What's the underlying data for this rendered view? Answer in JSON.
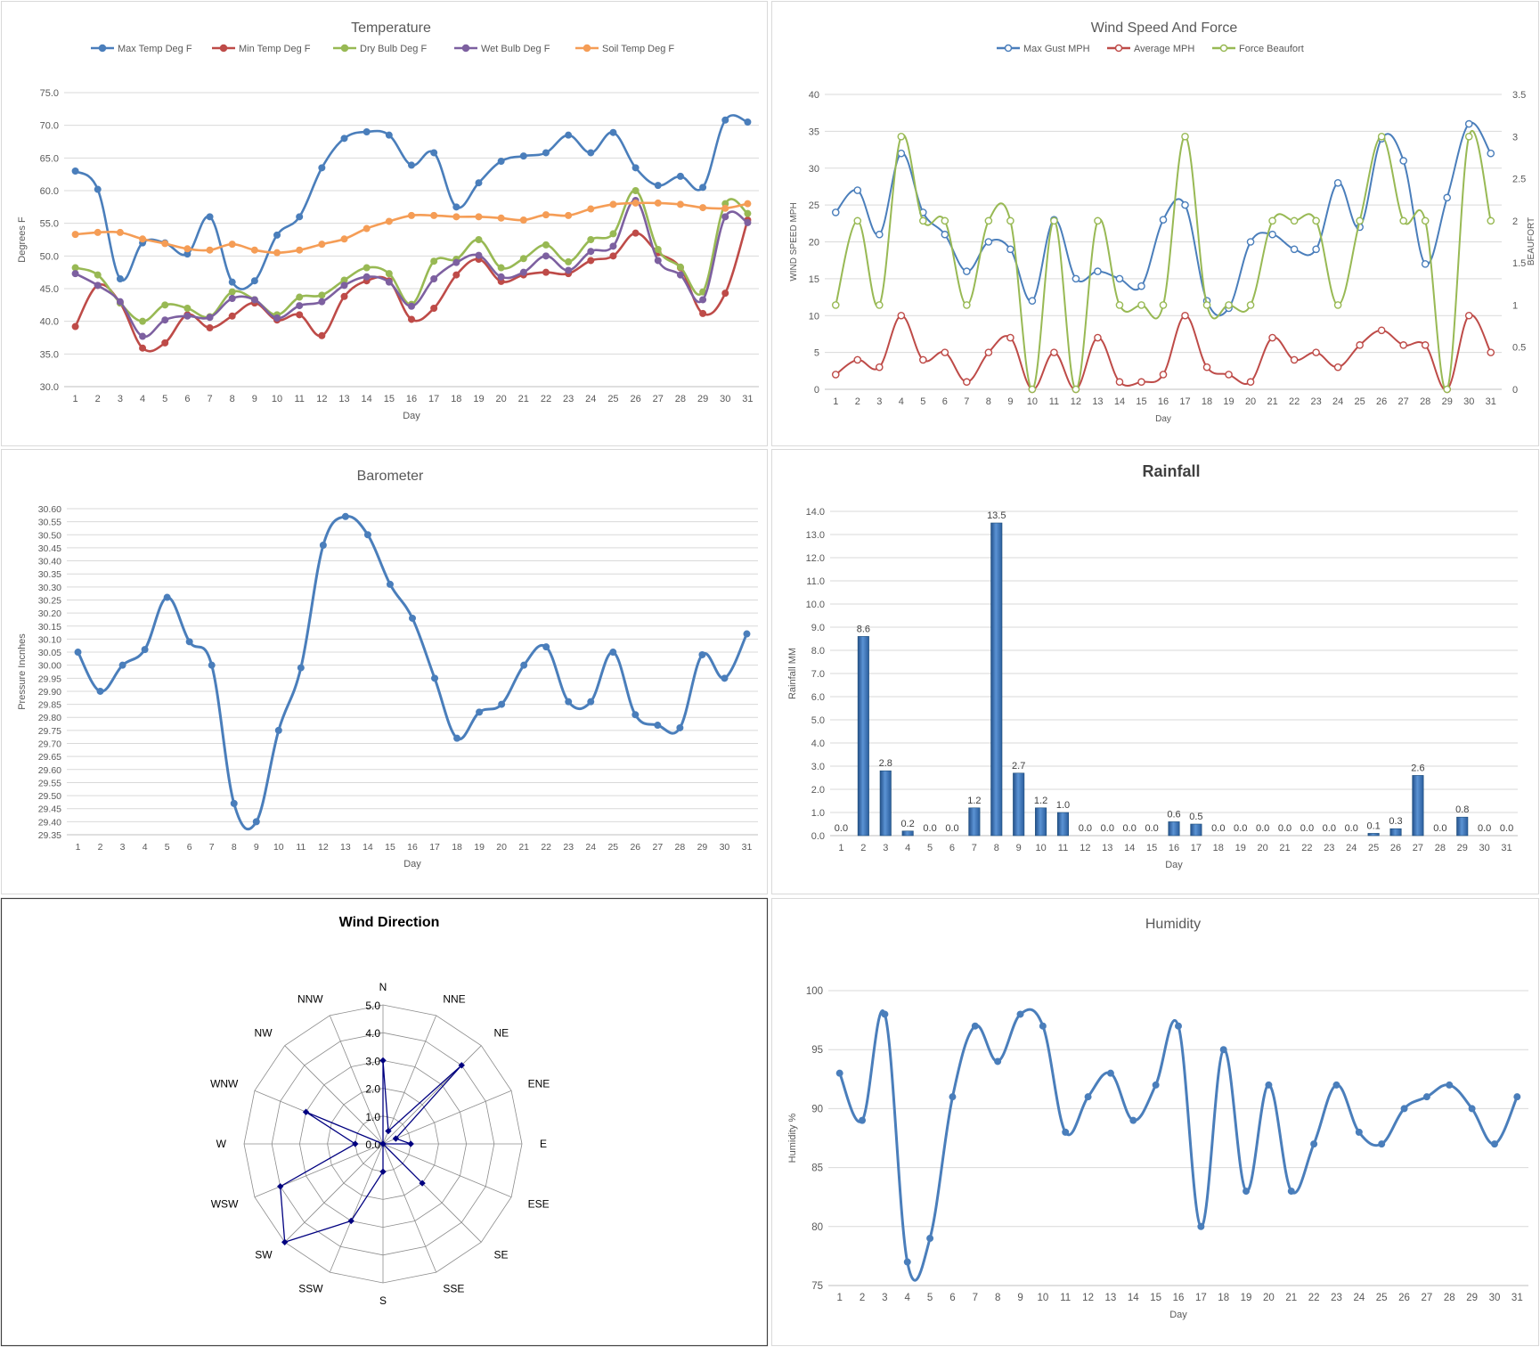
{
  "chart_data": [
    {
      "id": "temperature",
      "type": "line",
      "title": "Temperature",
      "xlabel": "Day",
      "ylabel": "Degrees F",
      "ylim": [
        30,
        75
      ],
      "yticks": [
        "30.0",
        "35.0",
        "40.0",
        "45.0",
        "50.0",
        "55.0",
        "60.0",
        "65.0",
        "70.0",
        "75.0"
      ],
      "categories": [
        "1",
        "2",
        "3",
        "4",
        "5",
        "6",
        "7",
        "8",
        "9",
        "10",
        "11",
        "12",
        "13",
        "14",
        "15",
        "16",
        "17",
        "18",
        "19",
        "20",
        "21",
        "22",
        "23",
        "24",
        "25",
        "26",
        "27",
        "28",
        "29",
        "30",
        "31"
      ],
      "legend_position": "top",
      "grid": true,
      "series": [
        {
          "name": "Max Temp Deg F",
          "color": "#4a7ebb",
          "values": [
            63,
            60.2,
            46.5,
            52,
            52,
            50.3,
            56,
            46,
            46.2,
            53.2,
            56,
            63.5,
            68,
            69,
            68.5,
            63.9,
            65.8,
            57.5,
            61.2,
            64.5,
            65.3,
            65.8,
            68.5,
            65.8,
            68.9,
            63.5,
            60.8,
            62.2,
            60.5,
            70.8,
            70.5
          ]
        },
        {
          "name": "Min Temp Deg F",
          "color": "#be4b48",
          "values": [
            39.2,
            45.5,
            42.8,
            35.9,
            36.7,
            41,
            39,
            40.8,
            42.8,
            40.2,
            41,
            37.8,
            43.8,
            46.2,
            46.2,
            40.3,
            42,
            47.1,
            49.5,
            46.1,
            47.1,
            47.5,
            47.3,
            49.3,
            50,
            53.5,
            50.5,
            48.2,
            41.2,
            44.3,
            55.5
          ]
        },
        {
          "name": "Dry Bulb Deg F",
          "color": "#98b954",
          "values": [
            48.2,
            47.1,
            42.8,
            40,
            42.5,
            42,
            40.7,
            44.5,
            43.3,
            41,
            43.7,
            44,
            46.3,
            48.2,
            47.3,
            42.6,
            49.2,
            49.5,
            52.5,
            48.2,
            49.6,
            51.7,
            49.1,
            52.5,
            53.4,
            60,
            51,
            48.3,
            44.5,
            58,
            56.5
          ]
        },
        {
          "name": "Wet Bulb Deg F",
          "color": "#7d60a0",
          "values": [
            47.3,
            45.5,
            43,
            37.7,
            40.2,
            40.8,
            40.6,
            43.5,
            43.3,
            40.5,
            42.4,
            43,
            45.5,
            46.8,
            46,
            42.3,
            46.5,
            49,
            50.1,
            46.8,
            47.5,
            50,
            47.8,
            50.7,
            51.5,
            58.5,
            49.3,
            47.1,
            43.3,
            56,
            55.1
          ]
        },
        {
          "name": "Soil Temp Deg F",
          "color": "#f59d56",
          "values": [
            53.3,
            53.6,
            53.6,
            52.6,
            51.9,
            51.1,
            50.9,
            51.8,
            50.9,
            50.5,
            50.9,
            51.8,
            52.6,
            54.2,
            55.3,
            56.2,
            56.2,
            56,
            56,
            55.8,
            55.5,
            56.3,
            56.2,
            57.2,
            57.9,
            58.1,
            58.1,
            57.9,
            57.4,
            57.3,
            58
          ]
        }
      ]
    },
    {
      "id": "wind",
      "type": "line",
      "title": "Wind Speed And Force",
      "xlabel": "Day",
      "ylabel": "WIND SPEED MPH",
      "ylabel2": "BEAUFORT",
      "ylim": [
        0,
        40
      ],
      "y2lim": [
        0,
        3.5
      ],
      "yticks": [
        "0",
        "5",
        "10",
        "15",
        "20",
        "25",
        "30",
        "35",
        "40"
      ],
      "y2ticks": [
        "0",
        "0.5",
        "1",
        "1.5",
        "2",
        "2.5",
        "3",
        "3.5"
      ],
      "categories": [
        "1",
        "2",
        "3",
        "4",
        "5",
        "6",
        "7",
        "8",
        "9",
        "10",
        "11",
        "12",
        "13",
        "14",
        "15",
        "16",
        "17",
        "18",
        "19",
        "20",
        "21",
        "22",
        "23",
        "24",
        "25",
        "26",
        "27",
        "28",
        "29",
        "30",
        "31"
      ],
      "legend_position": "top",
      "grid": true,
      "series": [
        {
          "name": "Max Gust MPH",
          "color": "#4a7ebb",
          "axis": "left",
          "values": [
            24,
            27,
            21,
            32,
            24,
            21,
            16,
            20,
            19,
            12,
            23,
            15,
            16,
            15,
            14,
            23,
            25,
            12,
            11,
            20,
            21,
            19,
            19,
            28,
            22,
            34,
            31,
            17,
            26,
            36,
            32
          ]
        },
        {
          "name": "Average MPH",
          "color": "#be4b48",
          "axis": "left",
          "values": [
            2,
            4,
            3,
            10,
            4,
            5,
            1,
            5,
            7,
            0,
            5,
            0,
            7,
            1,
            1,
            2,
            10,
            3,
            2,
            1,
            7,
            4,
            5,
            3,
            6,
            8,
            6,
            6,
            0,
            10,
            5
          ]
        },
        {
          "name": "Force Beaufort",
          "color": "#98b954",
          "axis": "right",
          "values": [
            1,
            2,
            1,
            3,
            2,
            2,
            1,
            2,
            2,
            0,
            2,
            0,
            2,
            1,
            1,
            1,
            3,
            1,
            1,
            1,
            2,
            2,
            2,
            1,
            2,
            3,
            2,
            2,
            0,
            3,
            2
          ]
        }
      ]
    },
    {
      "id": "barometer",
      "type": "line",
      "title": "Barometer",
      "xlabel": "Day",
      "ylabel": "Pressure Incnhes",
      "ylim": [
        29.35,
        30.6
      ],
      "yticks": [
        "29.35",
        "29.40",
        "29.45",
        "29.50",
        "29.55",
        "29.60",
        "29.65",
        "29.70",
        "29.75",
        "29.80",
        "29.85",
        "29.90",
        "29.95",
        "30.00",
        "30.05",
        "30.10",
        "30.15",
        "30.20",
        "30.25",
        "30.30",
        "30.35",
        "30.40",
        "30.45",
        "30.50",
        "30.55",
        "30.60"
      ],
      "categories": [
        "1",
        "2",
        "3",
        "4",
        "5",
        "6",
        "7",
        "8",
        "9",
        "10",
        "11",
        "12",
        "13",
        "14",
        "15",
        "16",
        "17",
        "18",
        "19",
        "20",
        "21",
        "22",
        "23",
        "24",
        "25",
        "26",
        "27",
        "28",
        "29",
        "30",
        "31"
      ],
      "grid": true,
      "series": [
        {
          "name": "",
          "color": "#4a7ebb",
          "values": [
            30.05,
            29.9,
            30,
            30.06,
            30.26,
            30.09,
            30,
            29.47,
            29.4,
            29.75,
            29.99,
            30.46,
            30.57,
            30.5,
            30.31,
            30.18,
            29.95,
            29.72,
            29.82,
            29.85,
            30,
            30.07,
            29.86,
            29.86,
            30.05,
            29.81,
            29.77,
            29.76,
            30.04,
            29.95,
            30.12
          ]
        }
      ]
    },
    {
      "id": "rainfall",
      "type": "bar",
      "title": "Rainfall",
      "xlabel": "Day",
      "ylabel": "Rainfall MM",
      "ylim": [
        0,
        14
      ],
      "yticks": [
        "0.0",
        "1.0",
        "2.0",
        "3.0",
        "4.0",
        "5.0",
        "6.0",
        "7.0",
        "8.0",
        "9.0",
        "10.0",
        "11.0",
        "12.0",
        "13.0",
        "14.0"
      ],
      "categories": [
        "1",
        "2",
        "3",
        "4",
        "5",
        "6",
        "7",
        "8",
        "9",
        "10",
        "11",
        "12",
        "13",
        "14",
        "15",
        "16",
        "17",
        "18",
        "19",
        "20",
        "21",
        "22",
        "23",
        "24",
        "25",
        "26",
        "27",
        "28",
        "29",
        "30",
        "31"
      ],
      "grid": true,
      "series": [
        {
          "name": "",
          "color": "#3a6fb0",
          "values": [
            0,
            8.6,
            2.8,
            0.2,
            0,
            0,
            1.2,
            13.5,
            2.7,
            1.2,
            1,
            0,
            0,
            0,
            0,
            0.6,
            0.5,
            0,
            0,
            0,
            0,
            0,
            0,
            0,
            0.1,
            0.3,
            2.6,
            0,
            0.8,
            0,
            0
          ],
          "labels": [
            "0.0",
            "8.6",
            "2.8",
            "0.2",
            "0.0",
            "0.0",
            "1.2",
            "13.5",
            "2.7",
            "1.2",
            "1.0",
            "0.0",
            "0.0",
            "0.0",
            "0.0",
            "0.6",
            "0.5",
            "0.0",
            "0.0",
            "0.0",
            "0.0",
            "0.0",
            "0.0",
            "0.0",
            "0.1",
            "0.3",
            "2.6",
            "0.0",
            "0.8",
            "0.0",
            "0.0"
          ]
        }
      ]
    },
    {
      "id": "wind_direction",
      "type": "radar",
      "title": "Wind Direction",
      "rlim": [
        0,
        5
      ],
      "rticks": [
        "0.0",
        "1.0",
        "2.0",
        "3.0",
        "4.0",
        "5.0"
      ],
      "categories": [
        "N",
        "NNE",
        "NE",
        "ENE",
        "E",
        "ESE",
        "SE",
        "SSE",
        "S",
        "SSW",
        "SW",
        "WSW",
        "W",
        "WNW",
        "NW",
        "NNW"
      ],
      "series": [
        {
          "name": "",
          "color": "#000080",
          "values": [
            3,
            0.5,
            4,
            0.5,
            1,
            0,
            2,
            0,
            1,
            3,
            5,
            4,
            1,
            3,
            0,
            0
          ]
        }
      ]
    },
    {
      "id": "humidity",
      "type": "line",
      "title": "Humidity",
      "xlabel": "Day",
      "ylabel": "Humidity %",
      "ylim": [
        75,
        100
      ],
      "yticks": [
        "75",
        "80",
        "85",
        "90",
        "95",
        "100"
      ],
      "categories": [
        "1",
        "2",
        "3",
        "4",
        "5",
        "6",
        "7",
        "8",
        "9",
        "10",
        "11",
        "12",
        "13",
        "14",
        "15",
        "16",
        "17",
        "18",
        "19",
        "20",
        "21",
        "22",
        "23",
        "24",
        "25",
        "26",
        "27",
        "28",
        "29",
        "30",
        "31"
      ],
      "grid": true,
      "series": [
        {
          "name": "",
          "color": "#4a7ebb",
          "values": [
            93,
            89,
            98,
            77,
            79,
            91,
            97,
            94,
            98,
            97,
            88,
            91,
            93,
            89,
            92,
            97,
            80,
            95,
            83,
            92,
            83,
            87,
            92,
            88,
            87,
            90,
            91,
            92,
            90,
            87,
            91
          ]
        }
      ]
    }
  ]
}
